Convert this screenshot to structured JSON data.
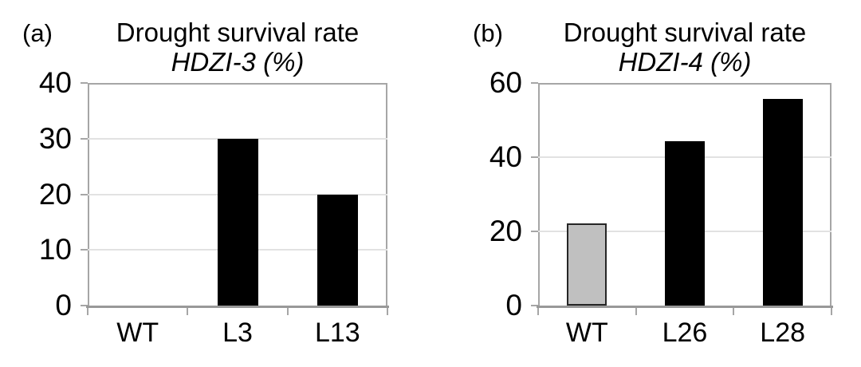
{
  "figure": {
    "background": "#ffffff",
    "text_color": "#000000"
  },
  "colors": {
    "bar_black": "#000000",
    "bar_gray_fill": "#c0c0c0",
    "bar_gray_border": "#262626",
    "plot_border": "#a6a6a6",
    "gridline": "#e2e2e2",
    "axis_line": "#999999"
  },
  "chart_data": [
    {
      "type": "bar",
      "panel_label": "(a)",
      "title": "Drought survival rate",
      "subtitle": "HDZI-3 (%)",
      "subtitle_gene": "HDZI-3",
      "xlabel": "",
      "ylabel": "",
      "categories": [
        "WT",
        "L3",
        "L13"
      ],
      "values": [
        0,
        30,
        20
      ],
      "bar_fill_colors": [
        "#000000",
        "#000000",
        "#000000"
      ],
      "bar_border_colors": [
        "#000000",
        "#000000",
        "#000000"
      ],
      "ylim": [
        0,
        40
      ],
      "yticks": [
        0,
        10,
        20,
        30,
        40
      ],
      "grid": true,
      "legend": "none"
    },
    {
      "type": "bar",
      "panel_label": "(b)",
      "title": "Drought survival rate",
      "subtitle": "HDZI-4 (%)",
      "subtitle_gene": "HDZI-4",
      "xlabel": "",
      "ylabel": "",
      "categories": [
        "WT",
        "L26",
        "L28"
      ],
      "values": [
        22.2,
        44.4,
        55.6
      ],
      "bar_fill_colors": [
        "#c0c0c0",
        "#000000",
        "#000000"
      ],
      "bar_border_colors": [
        "#262626",
        "#000000",
        "#000000"
      ],
      "ylim": [
        0,
        60
      ],
      "yticks": [
        0,
        20,
        40,
        60
      ],
      "grid": true,
      "legend": "none"
    }
  ]
}
